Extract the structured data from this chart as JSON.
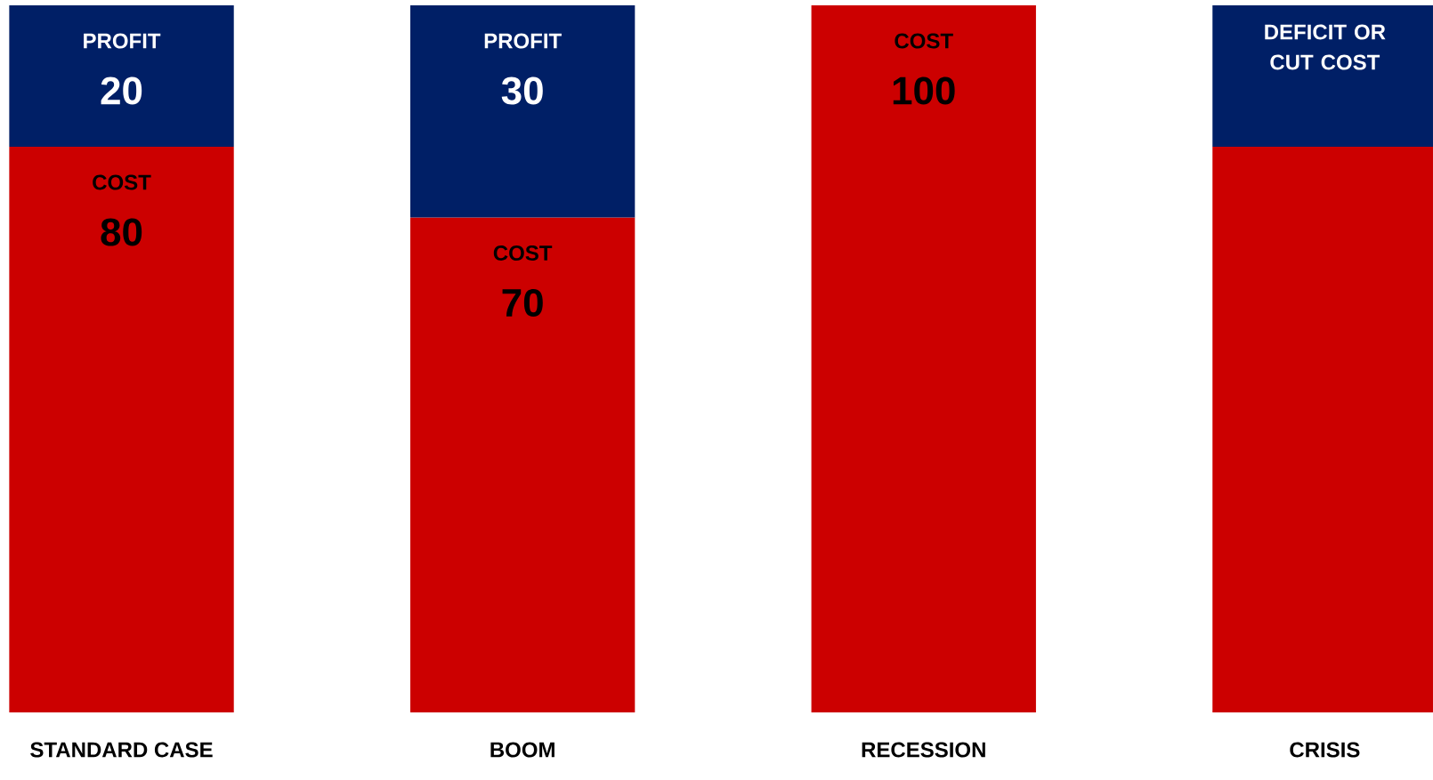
{
  "chart_data": {
    "type": "bar",
    "stacked": true,
    "ylim": [
      0,
      100
    ],
    "legend": false,
    "categories": [
      "STANDARD CASE",
      "BOOM",
      "RECESSION",
      "CRISIS"
    ],
    "series": [
      {
        "name": "COST",
        "color": "#cc0000",
        "values": [
          80,
          70,
          100,
          80
        ],
        "value_labels": [
          "80",
          "70",
          "100",
          null
        ]
      },
      {
        "name": "PROFIT",
        "color": "#001f66",
        "values": [
          20,
          30,
          null,
          20
        ],
        "value_labels": [
          "20",
          "30",
          null,
          null
        ]
      }
    ],
    "annotations": [
      "DEFICIT OR CUT COST"
    ]
  }
}
